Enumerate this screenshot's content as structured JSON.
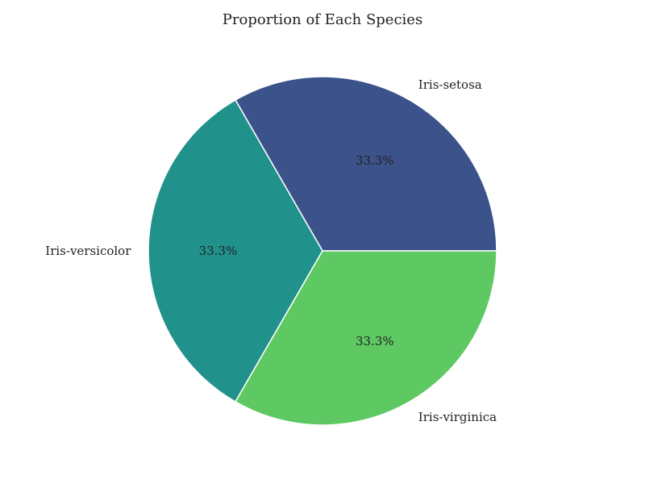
{
  "chart_data": {
    "type": "pie",
    "title": "Proportion of Each Species",
    "categories": [
      "Iris-setosa",
      "Iris-versicolor",
      "Iris-virginica"
    ],
    "values": [
      50,
      50,
      50
    ],
    "percent_labels": [
      "33.3%",
      "33.3%",
      "33.3%"
    ],
    "colors": [
      "#3b528b",
      "#21918c",
      "#5ec962"
    ],
    "start_angle_deg": 0,
    "direction": "counterclockwise",
    "edge_color": "#ffffff",
    "legend": "none"
  }
}
